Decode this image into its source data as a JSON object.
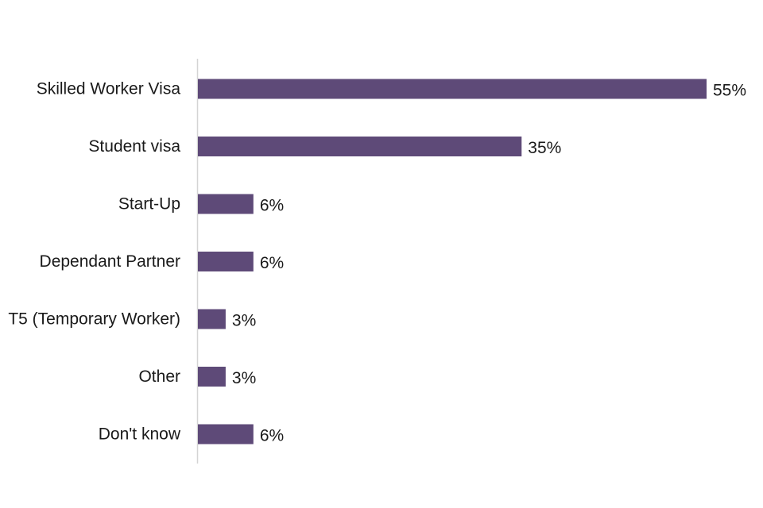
{
  "chart_data": {
    "type": "bar",
    "orientation": "horizontal",
    "categories": [
      "Skilled Worker Visa",
      "Student visa",
      "Start-Up",
      "Dependant Partner",
      "T5 (Temporary Worker)",
      "Other",
      "Don't know"
    ],
    "values": [
      55,
      35,
      6,
      6,
      3,
      3,
      6
    ],
    "value_labels": [
      "55%",
      "35%",
      "6%",
      "6%",
      "3%",
      "3%",
      "6%"
    ],
    "value_unit": "%",
    "title": "",
    "xlabel": "",
    "ylabel": "",
    "xlim": [
      0,
      55
    ],
    "grid": false,
    "legend": "none",
    "bar_color": "#5e4a78",
    "axis_color": "#d4d4d4"
  }
}
